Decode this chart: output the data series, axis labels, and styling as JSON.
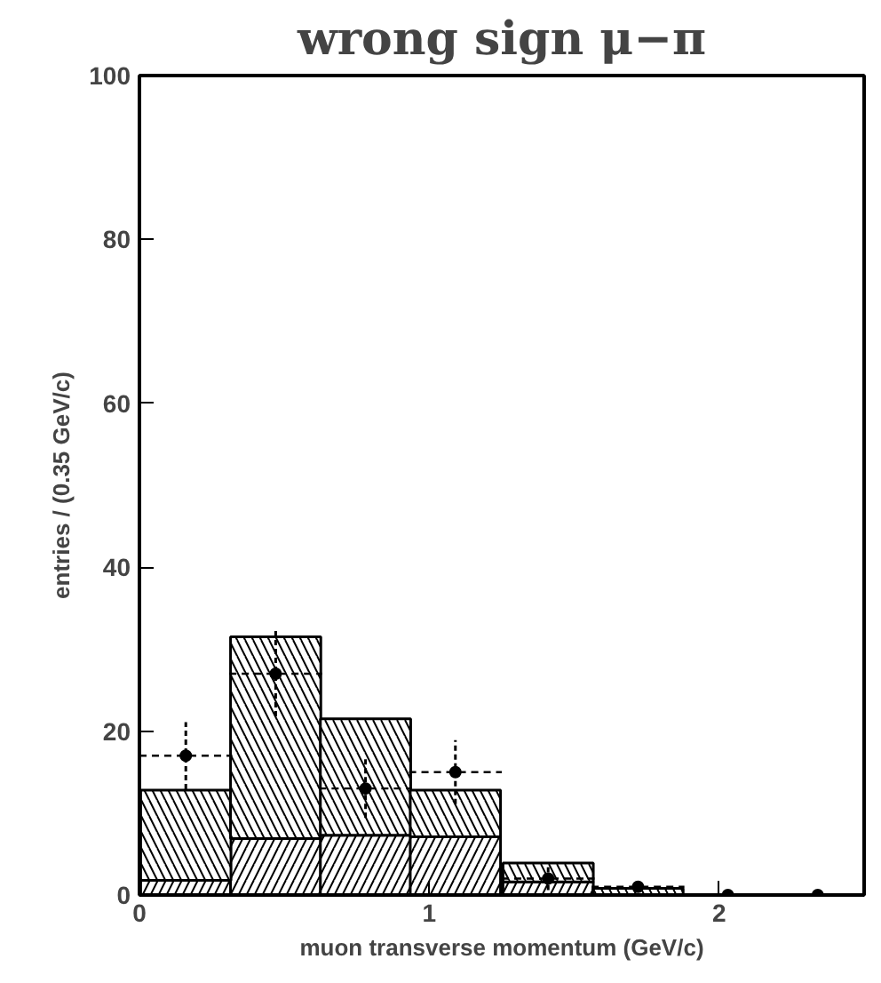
{
  "chart_data": {
    "type": "bar",
    "title": "wrong sign μ−π",
    "xlabel": "muon transverse momentum (GeV/c)",
    "ylabel": "entries / (0.35 GeV/c)",
    "x": [
      0.16,
      0.47,
      0.78,
      1.09,
      1.41,
      1.72,
      2.03,
      2.34
    ],
    "stacked": true,
    "series": [
      {
        "color": "#000000",
        "values": [
          1.8,
          6.9,
          7.3,
          7.1,
          1.6,
          null,
          0,
          0
        ]
      },
      {
        "color": "#000000",
        "values": [
          11,
          24.6,
          14.2,
          5.7,
          2.3,
          0.8,
          0,
          0
        ]
      },
      {
        "type": "scatter",
        "color": "#000000",
        "values": [
          17,
          27,
          13,
          15,
          2,
          1,
          0,
          0
        ],
        "errors": [
          4.1,
          5.2,
          3.6,
          3.9,
          1.4,
          null,
          null,
          null
        ],
        "xerrors": [
          0.16,
          0.16,
          0.16,
          0.16,
          0.16,
          0.16,
          null,
          null
        ]
      }
    ],
    "marker": "circle",
    "xlim": [
      0,
      2.5
    ],
    "ylim": [
      0,
      100
    ],
    "xticks": [
      0,
      1,
      2
    ],
    "yticks": [
      0,
      20,
      40,
      60,
      80,
      100
    ],
    "grid": false
  }
}
